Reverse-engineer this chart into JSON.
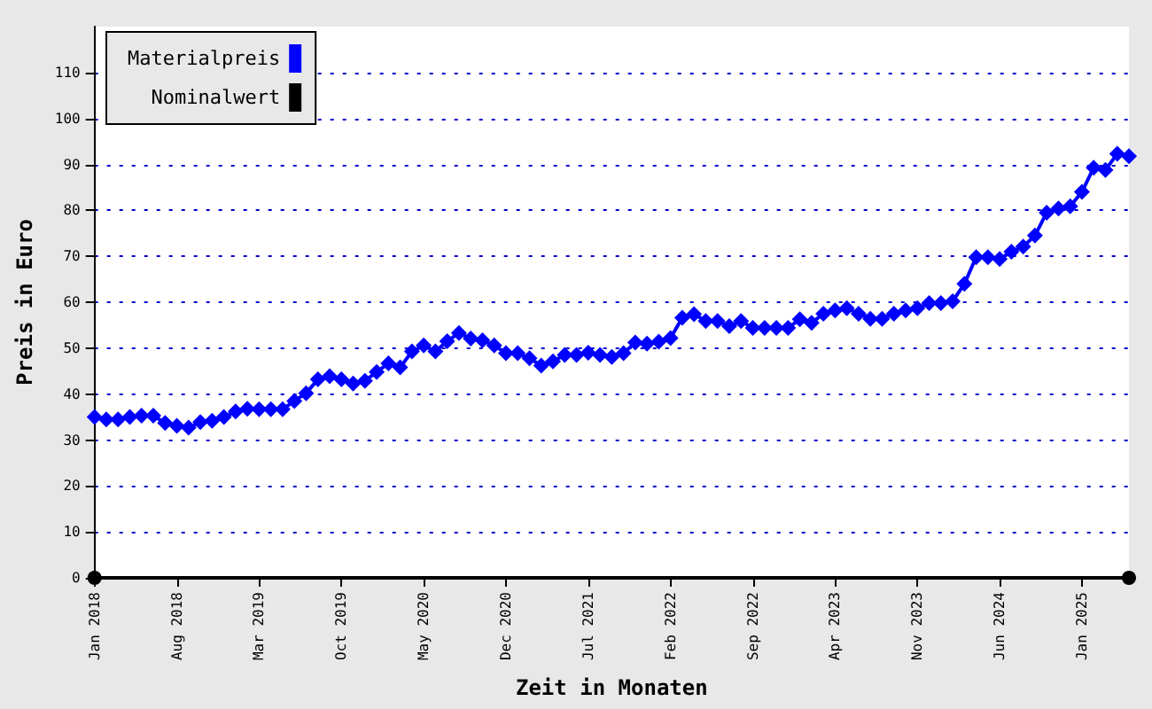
{
  "chart_data": {
    "type": "line",
    "xlabel": "Zeit in Monaten",
    "ylabel": "Preis in Euro",
    "x": [
      "2018-01",
      "2018-02",
      "2018-03",
      "2018-04",
      "2018-05",
      "2018-06",
      "2018-07",
      "2018-08",
      "2018-09",
      "2018-10",
      "2018-11",
      "2018-12",
      "2019-01",
      "2019-02",
      "2019-03",
      "2019-04",
      "2019-05",
      "2019-06",
      "2019-07",
      "2019-08",
      "2019-09",
      "2019-10",
      "2019-11",
      "2019-12",
      "2020-01",
      "2020-02",
      "2020-03",
      "2020-04",
      "2020-05",
      "2020-06",
      "2020-07",
      "2020-08",
      "2020-09",
      "2020-10",
      "2020-11",
      "2020-12",
      "2021-01",
      "2021-02",
      "2021-03",
      "2021-04",
      "2021-05",
      "2021-06",
      "2021-07",
      "2021-08",
      "2021-09",
      "2021-10",
      "2021-11",
      "2021-12",
      "2022-01",
      "2022-02",
      "2022-03",
      "2022-04",
      "2022-05",
      "2022-06",
      "2022-07",
      "2022-08",
      "2022-09",
      "2022-10",
      "2022-11",
      "2022-12",
      "2023-01",
      "2023-02",
      "2023-03",
      "2023-04",
      "2023-05",
      "2023-06",
      "2023-07",
      "2023-08",
      "2023-09",
      "2023-10",
      "2023-11",
      "2023-12",
      "2024-01",
      "2024-02",
      "2024-03",
      "2024-04",
      "2024-05",
      "2024-06",
      "2024-07",
      "2024-08",
      "2024-09",
      "2024-10",
      "2024-11",
      "2024-12",
      "2025-01",
      "2025-02",
      "2025-03",
      "2025-04",
      "2025-05"
    ],
    "series": [
      {
        "name": "Materialpreis",
        "color": "#0000ff",
        "marker": "diamond",
        "values": [
          35,
          34.5,
          34.5,
          35,
          35.3,
          35.3,
          33.7,
          33.1,
          32.7,
          33.9,
          34.2,
          35,
          36.2,
          36.8,
          36.7,
          36.7,
          36.7,
          38.5,
          40.2,
          43.2,
          43.9,
          43.2,
          42.3,
          42.9,
          44.8,
          46.7,
          45.8,
          49.3,
          50.6,
          49.3,
          51.5,
          53.3,
          52.1,
          51.7,
          50.6,
          48.9,
          48.9,
          47.8,
          46.2,
          47.1,
          48.5,
          48.5,
          49,
          48.5,
          48.1,
          48.9,
          51.2,
          51,
          51.4,
          52.2,
          56.6,
          57.4,
          55.9,
          55.9,
          54.8,
          55.9,
          54.4,
          54.4,
          54.4,
          54.4,
          56.3,
          55.5,
          57.5,
          58.2,
          58.7,
          57.5,
          56.4,
          56.4,
          57.5,
          58.2,
          58.7,
          59.8,
          59.8,
          60.2,
          64,
          69.8,
          69.8,
          69.4,
          71,
          72.1,
          74.5,
          79.5,
          80.4,
          80.9,
          84,
          89.3,
          88.8,
          92.3,
          91.8
        ]
      },
      {
        "name": "Nominalwert",
        "color": "#000000",
        "marker": "circle",
        "x": [
          "2018-01",
          "2025-05"
        ],
        "values": [
          0,
          0
        ]
      }
    ],
    "xlim": [
      "2018-01",
      "2025-05"
    ],
    "xticks": [
      {
        "value": "2018-01",
        "label": "Jan 2018"
      },
      {
        "value": "2018-08",
        "label": "Aug 2018"
      },
      {
        "value": "2019-03",
        "label": "Mar 2019"
      },
      {
        "value": "2019-10",
        "label": "Oct 2019"
      },
      {
        "value": "2020-05",
        "label": "May 2020"
      },
      {
        "value": "2020-12",
        "label": "Dec 2020"
      },
      {
        "value": "2021-07",
        "label": "Jul 2021"
      },
      {
        "value": "2022-02",
        "label": "Feb 2022"
      },
      {
        "value": "2022-09",
        "label": "Sep 2022"
      },
      {
        "value": "2023-04",
        "label": "Apr 2023"
      },
      {
        "value": "2023-11",
        "label": "Nov 2023"
      },
      {
        "value": "2024-06",
        "label": "Jun 2024"
      },
      {
        "value": "2025-01",
        "label": "Jan 2025"
      }
    ],
    "ylim": [
      0,
      120
    ],
    "yticks": [
      0,
      10,
      20,
      30,
      40,
      50,
      60,
      70,
      80,
      90,
      100,
      110
    ],
    "grid": "y",
    "legend": "top left",
    "line_style": "solid"
  }
}
